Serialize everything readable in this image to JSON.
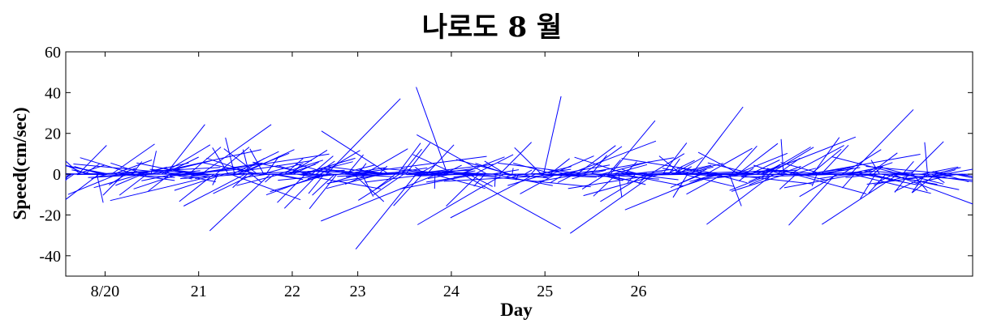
{
  "chart_data": {
    "type": "stick-vector",
    "title": "나로도 8 월",
    "xlabel": "Day",
    "ylabel": "Speed(cm/sec)",
    "ylim": [
      -50,
      60
    ],
    "xlim": [
      19.58,
      29.27
    ],
    "yticks": [
      -40,
      -20,
      0,
      20,
      40,
      60
    ],
    "xticks": [
      {
        "value": 20.0,
        "label": "8/20"
      },
      {
        "value": 21.0,
        "label": "21"
      },
      {
        "value": 22.0,
        "label": "22"
      },
      {
        "value": 22.7,
        "label": "23"
      },
      {
        "value": 23.7,
        "label": "24"
      },
      {
        "value": 24.7,
        "label": "25"
      },
      {
        "value": 25.7,
        "label": "26"
      }
    ],
    "line_color": "#0000ff",
    "grid": false
  }
}
